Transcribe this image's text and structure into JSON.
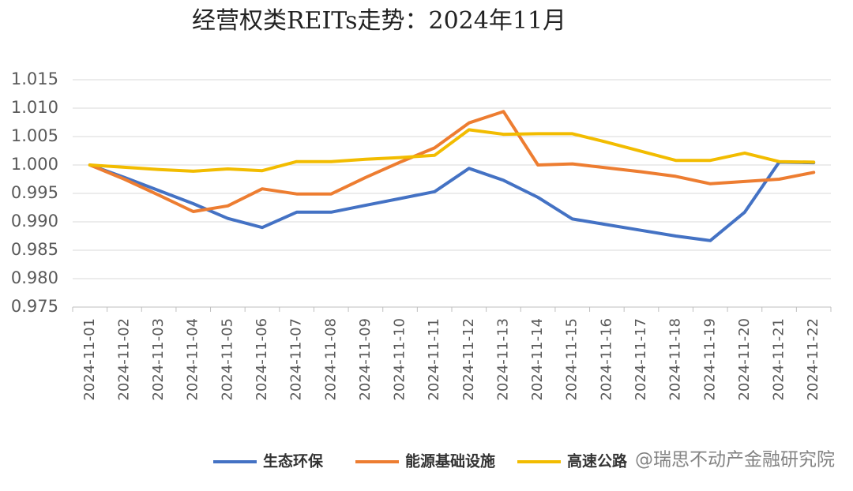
{
  "chart_data": {
    "type": "line",
    "title": "经营权类REITs走势：2024年11月",
    "categories": [
      "2024-11-01",
      "2024-11-02",
      "2024-11-03",
      "2024-11-04",
      "2024-11-05",
      "2024-11-06",
      "2024-11-07",
      "2024-11-08",
      "2024-11-09",
      "2024-11-10",
      "2024-11-11",
      "2024-11-12",
      "2024-11-13",
      "2024-11-14",
      "2024-11-15",
      "2024-11-16",
      "2024-11-17",
      "2024-11-18",
      "2024-11-19",
      "2024-11-20",
      "2024-11-21",
      "2024-11-22"
    ],
    "series": [
      {
        "name": "生态环保",
        "color": "#4472c4",
        "values": [
          1.0,
          0.9978,
          0.9955,
          0.9932,
          0.9906,
          0.989,
          0.9917,
          0.9917,
          0.9929,
          0.9941,
          0.9953,
          0.9994,
          0.9973,
          0.9943,
          0.9905,
          0.9895,
          0.9885,
          0.9875,
          0.9867,
          0.9917,
          1.0005,
          1.0004
        ]
      },
      {
        "name": "能源基础设施",
        "color": "#ed7d31",
        "values": [
          1.0,
          0.9975,
          0.9947,
          0.9918,
          0.9928,
          0.9958,
          0.9949,
          0.9949,
          0.9978,
          1.0005,
          1.003,
          1.0074,
          1.0094,
          1.0,
          1.0002,
          0.9995,
          0.9988,
          0.998,
          0.9967,
          0.9971,
          0.9975,
          0.9987
        ]
      },
      {
        "name": "高速公路",
        "color": "#f2bc00",
        "values": [
          1.0,
          0.9996,
          0.9992,
          0.9989,
          0.9993,
          0.999,
          1.0006,
          1.0006,
          1.001,
          1.0013,
          1.0017,
          1.0062,
          1.0054,
          1.0055,
          1.0055,
          1.004,
          1.0024,
          1.0008,
          1.0008,
          1.0021,
          1.0006,
          1.0005
        ]
      }
    ],
    "ylim": [
      0.975,
      1.015
    ],
    "yticks": [
      {
        "value": 0.975,
        "label": "0.975"
      },
      {
        "value": 0.98,
        "label": "0.980"
      },
      {
        "value": 0.985,
        "label": "0.985"
      },
      {
        "value": 0.99,
        "label": "0.990"
      },
      {
        "value": 0.995,
        "label": "0.995"
      },
      {
        "value": 1.0,
        "label": "1.000"
      },
      {
        "value": 1.005,
        "label": "1.005"
      },
      {
        "value": 1.01,
        "label": "1.010"
      },
      {
        "value": 1.015,
        "label": "1.015"
      }
    ],
    "grid": true,
    "legend": "bottom",
    "watermark": "@瑞思不动产金融研究院"
  }
}
